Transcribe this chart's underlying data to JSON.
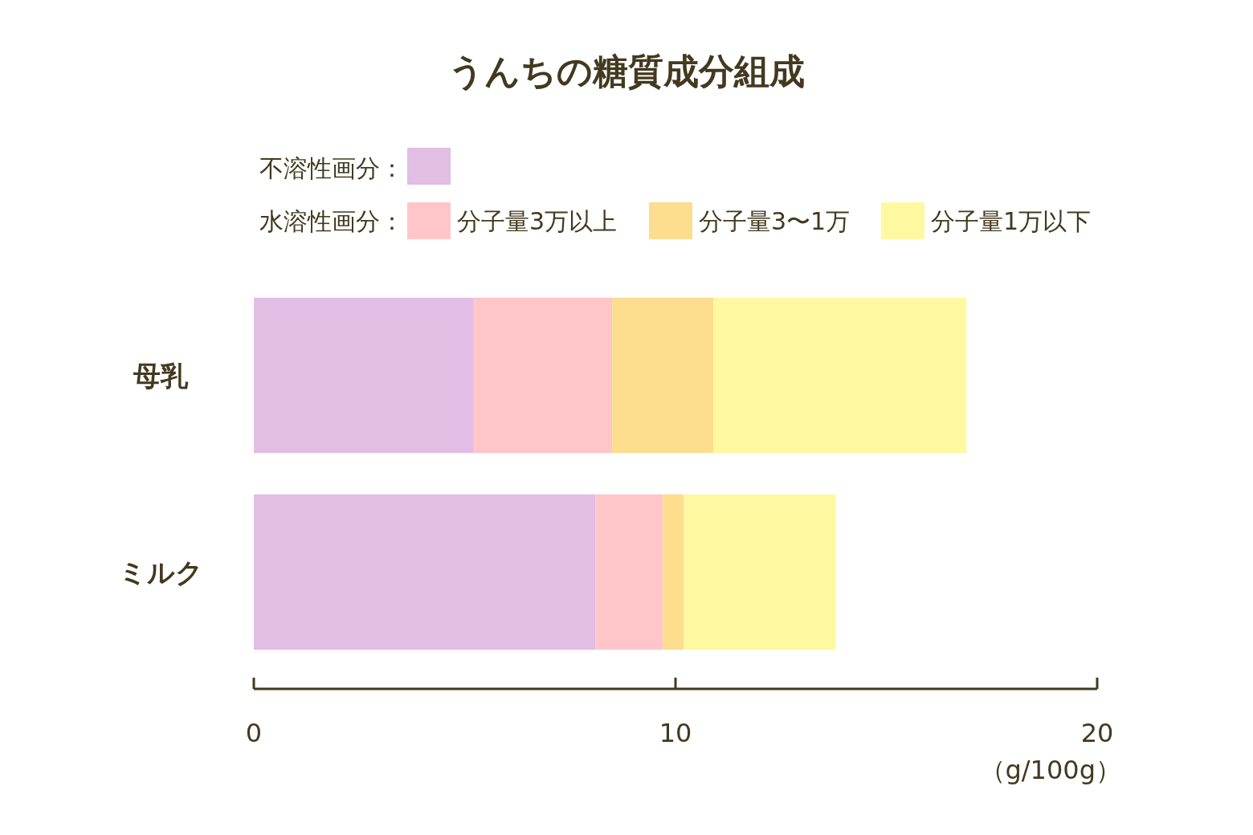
{
  "chart_data": {
    "type": "bar",
    "title": "うんちの糖質成分組成",
    "orientation": "horizontal",
    "stacked": true,
    "categories": [
      "母乳",
      "ミルク"
    ],
    "series": [
      {
        "color": "#e2bde4",
        "values": [
          5.2,
          8.1
        ]
      },
      {
        "name": "分子量3万以上",
        "color": "#fec6c8",
        "values": [
          3.3,
          1.6
        ]
      },
      {
        "name": "分子量3〜1万",
        "color": "#fddd8e",
        "values": [
          2.4,
          0.5
        ]
      },
      {
        "name": "分子量1万以下",
        "color": "#fef8a0",
        "values": [
          6.0,
          3.6
        ]
      }
    ],
    "xlim": [
      0,
      20
    ],
    "xticks": [
      0,
      10,
      20
    ],
    "xlabel": "（g/100g）",
    "legend": "top",
    "annotations": [
      "不溶性画分：",
      "水溶性画分："
    ]
  }
}
